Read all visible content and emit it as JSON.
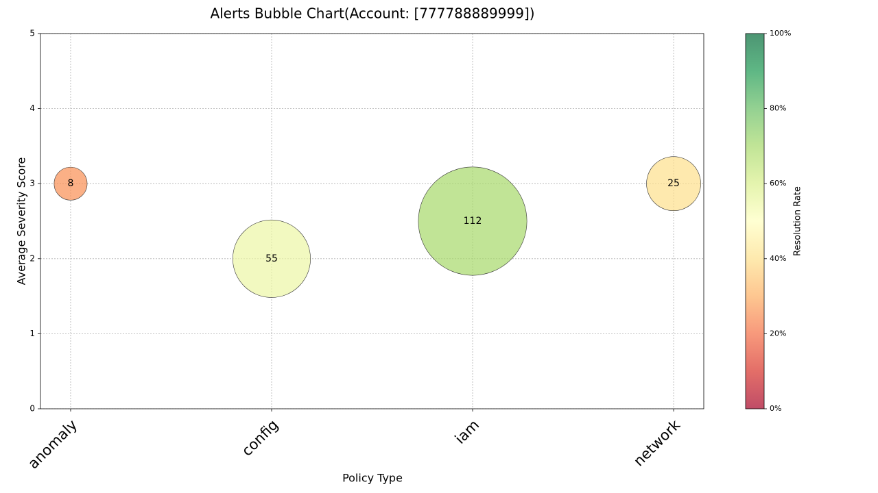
{
  "chart_data": {
    "type": "bubble",
    "title": "Alerts Bubble Chart(Account: [777788889999])",
    "x_label": "Policy Type",
    "y_label": "Average Severity Score",
    "categories": [
      "anomaly",
      "config",
      "iam",
      "network"
    ],
    "values": [
      3,
      2,
      2.5,
      3
    ],
    "sizes": [
      8,
      55,
      112,
      25
    ],
    "color_values": [
      25,
      55,
      70,
      40
    ],
    "ylim": [
      0,
      5
    ],
    "yticks": [
      0,
      1,
      2,
      3,
      4,
      5
    ],
    "grid": true,
    "colorbar": {
      "label": "Resolution Rate",
      "lim": [
        0,
        100
      ],
      "ticks": [
        {
          "value": 0,
          "label": "0%"
        },
        {
          "value": 20,
          "label": "20%"
        },
        {
          "value": 40,
          "label": "40%"
        },
        {
          "value": 60,
          "label": "60%"
        },
        {
          "value": 80,
          "label": "80%"
        },
        {
          "value": 100,
          "label": "100%"
        }
      ],
      "colormap": [
        "#a50026",
        "#d73027",
        "#f46d43",
        "#fdae61",
        "#fee08b",
        "#ffffbf",
        "#d9ef8b",
        "#a6d96a",
        "#66bd63",
        "#1a9850",
        "#006837"
      ],
      "alpha": 0.7
    }
  }
}
